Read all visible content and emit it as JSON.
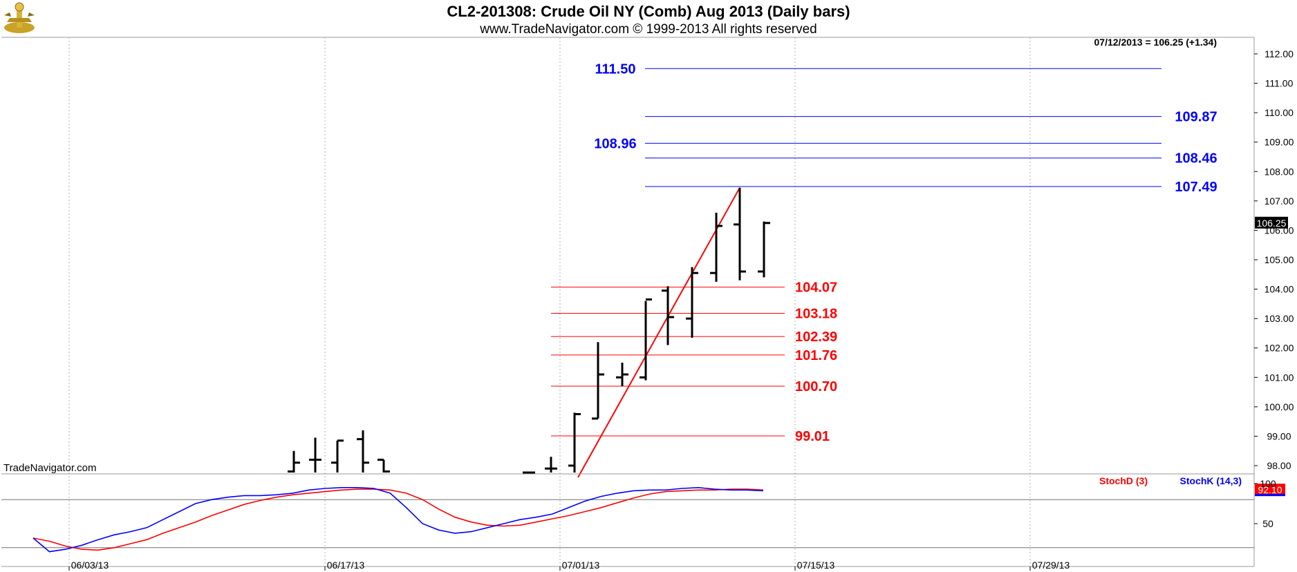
{
  "header": {
    "title": "CL2-201308:  Crude Oil NY (Comb) Aug 2013  (Daily bars)",
    "subtitle": "www.TradeNavigator.com © 1999-2013 All rights reserved"
  },
  "chart_data": [
    {
      "type": "bar",
      "subtype": "ohlc",
      "panel": "price",
      "watermark": "TradeNavigator.com",
      "quote": "07/12/2013 = 106.25 (+1.34)",
      "last_price": "106.25",
      "ylim": [
        97.6,
        112.6
      ],
      "y_ticks": [
        "98.00",
        "99.00",
        "100.00",
        "101.00",
        "102.00",
        "103.00",
        "104.00",
        "105.00",
        "106.00",
        "107.00",
        "108.00",
        "109.00",
        "110.00",
        "111.00",
        "112.00"
      ],
      "x_ticks": [
        "06/03/13",
        "06/17/13",
        "07/01/13",
        "07/15/13",
        "07/29/13"
      ],
      "grid": true,
      "bars": [
        {
          "date": "06/17/13",
          "o": 97.8,
          "h": 98.5,
          "l": 97.6,
          "c": 98.1
        },
        {
          "date": "06/18/13",
          "o": 98.2,
          "h": 98.95,
          "l": 97.6,
          "c": 98.2
        },
        {
          "date": "06/19/13",
          "o": 98.1,
          "h": 98.85,
          "l": 97.6,
          "c": 98.85
        },
        {
          "date": "06/20/13",
          "o": 98.9,
          "h": 99.2,
          "l": 97.6,
          "c": 98.1
        },
        {
          "date": "06/21/13",
          "o": 98.2,
          "h": 98.2,
          "l": 97.6,
          "c": 97.8
        },
        {
          "date": "06/27/13",
          "o": 97.7,
          "h": 97.75,
          "l": 97.6,
          "c": 97.7
        },
        {
          "date": "07/01/13",
          "o": 97.9,
          "h": 98.3,
          "l": 97.6,
          "c": 97.9
        },
        {
          "date": "07/02/13",
          "o": 98.0,
          "h": 99.8,
          "l": 97.6,
          "c": 99.75
        },
        {
          "date": "07/03/13",
          "o": 99.6,
          "h": 102.2,
          "l": 99.6,
          "c": 101.1
        },
        {
          "date": "07/05/13",
          "o": 101.0,
          "h": 101.5,
          "l": 100.7,
          "c": 101.1
        },
        {
          "date": "07/08/13",
          "o": 101.0,
          "h": 103.6,
          "l": 100.9,
          "c": 103.65
        },
        {
          "date": "07/09/13",
          "o": 103.95,
          "h": 104.1,
          "l": 102.1,
          "c": 103.05
        },
        {
          "date": "07/10/13",
          "o": 103.0,
          "h": 104.75,
          "l": 102.35,
          "c": 104.55
        },
        {
          "date": "07/11/13",
          "o": 104.55,
          "h": 106.6,
          "l": 104.25,
          "c": 106.15
        },
        {
          "date": "07/11b/13",
          "o": 106.2,
          "h": 107.45,
          "l": 104.3,
          "c": 104.6
        },
        {
          "date": "07/12/13",
          "o": 104.6,
          "h": 106.3,
          "l": 104.4,
          "c": 106.25
        }
      ],
      "trendline": {
        "from": {
          "date": "07/02/13",
          "value": 97.6
        },
        "to": {
          "date": "07/11b/13",
          "value": 107.45
        }
      },
      "retracement_levels": {
        "color": "#ff0000",
        "values": [
          104.07,
          103.18,
          102.39,
          101.76,
          100.7,
          99.01
        ],
        "labels": [
          "104.07",
          "103.18",
          "102.39",
          "101.76",
          "100.70",
          "99.01"
        ]
      },
      "projection_levels": {
        "color": "#0000ff",
        "values": [
          111.5,
          109.87,
          108.96,
          108.46,
          107.49
        ],
        "labels": [
          "111.50",
          "109.87",
          "108.96",
          "108.46",
          "107.49"
        ]
      }
    },
    {
      "type": "line",
      "panel": "stochastic",
      "ylim": [
        0,
        100
      ],
      "y_ticks": [
        "50",
        "100"
      ],
      "reference_lines": [
        80,
        20
      ],
      "last_value": "92.10",
      "series": [
        {
          "name": "StochD (3)",
          "color": "#ff0000",
          "values": [
            32,
            28,
            22,
            18,
            17,
            20,
            25,
            30,
            38,
            45,
            52,
            60,
            67,
            74,
            79,
            83,
            86,
            88,
            90,
            92,
            93,
            93,
            92,
            88,
            80,
            68,
            58,
            52,
            48,
            47,
            48,
            52,
            56,
            60,
            65,
            70,
            76,
            82,
            87,
            90,
            91,
            92,
            92,
            93,
            93,
            92
          ]
        },
        {
          "name": "StochK (14,3)",
          "color": "#0000ff",
          "values": [
            32,
            15,
            18,
            23,
            30,
            36,
            40,
            45,
            55,
            65,
            75,
            80,
            83,
            85,
            85,
            86,
            88,
            92,
            94,
            95,
            95,
            94,
            88,
            70,
            50,
            42,
            38,
            40,
            45,
            50,
            55,
            58,
            62,
            70,
            78,
            84,
            88,
            91,
            92,
            92,
            94,
            95,
            93,
            92,
            92,
            91
          ]
        }
      ],
      "x_ticks": [
        "06/03/13",
        "06/17/13",
        "07/01/13",
        "07/15/13",
        "07/29/13"
      ]
    }
  ]
}
